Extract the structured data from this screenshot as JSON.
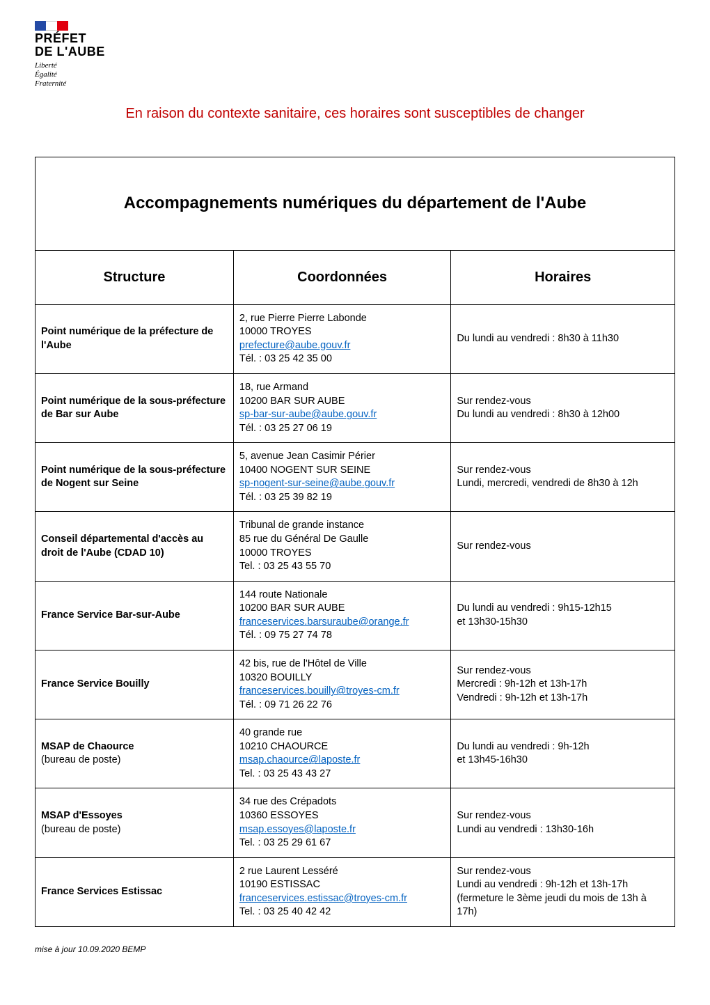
{
  "logo": {
    "line1": "PRÉFET",
    "line2": "DE L'AUBE",
    "motto1": "Liberté",
    "motto2": "Égalité",
    "motto3": "Fraternité"
  },
  "notice": "En raison du contexte sanitaire, ces horaires sont susceptibles de changer",
  "title": "Accompagnements numériques du département de l'Aube",
  "headers": {
    "structure": "Structure",
    "coord": "Coordonnées",
    "horaires": "Horaires"
  },
  "rows": [
    {
      "structure": "Point numérique de la préfecture de l'Aube",
      "addr1": "2, rue Pierre Pierre Labonde",
      "addr2": "10000 TROYES",
      "mail": "prefecture@aube.gouv.fr",
      "tel": "Tél. : 03 25 42 35 00",
      "horaires": "Du lundi au vendredi : 8h30 à 11h30"
    },
    {
      "structure": "Point numérique de la sous-préfecture de Bar sur Aube",
      "addr1": "18, rue Armand",
      "addr2": "10200 BAR SUR AUBE",
      "mail": "sp-bar-sur-aube@aube.gouv.fr",
      "tel": "Tél. : 03 25 27 06 19",
      "horaires": "Sur rendez-vous\nDu lundi au vendredi : 8h30 à 12h00"
    },
    {
      "structure": "Point numérique de la sous-préfecture de Nogent sur Seine",
      "addr1": "5, avenue Jean Casimir Périer",
      "addr2": "10400 NOGENT SUR SEINE",
      "mail": "sp-nogent-sur-seine@aube.gouv.fr",
      "tel": "Tél. : 03 25 39 82 19",
      "horaires": "Sur rendez-vous\nLundi, mercredi, vendredi de 8h30 à 12h"
    },
    {
      "structure": "Conseil départemental d'accès au droit de l'Aube (CDAD 10)",
      "addr1": "Tribunal de grande instance",
      "addr2": "85 rue du Général De Gaulle\n10000 TROYES",
      "mail": "",
      "tel": "Tel. : 03 25 43 55 70",
      "horaires": "Sur rendez-vous"
    },
    {
      "structure": "France Service Bar-sur-Aube",
      "addr1": "144 route Nationale",
      "addr2": "10200 BAR SUR AUBE",
      "mail": "franceservices.barsuraube@orange.fr",
      "tel": "Tél. : 09 75 27 74 78",
      "horaires": "Du lundi au vendredi : 9h15-12h15\net 13h30-15h30"
    },
    {
      "structure": "France Service Bouilly",
      "addr1": "42 bis, rue de l'Hôtel de Ville",
      "addr2": "10320 BOUILLY",
      "mail": "franceservices.bouilly@troyes-cm.fr",
      "tel": "Tél. : 09 71 26 22 76",
      "horaires": "Sur rendez-vous\nMercredi : 9h-12h et 13h-17h\nVendredi : 9h-12h et 13h-17h"
    },
    {
      "structure": "MSAP de Chaource",
      "structure_sub": "(bureau de poste)",
      "addr1": "40 grande rue",
      "addr2": "10210 CHAOURCE",
      "mail": "msap.chaource@laposte.fr",
      "tel": "Tel. : 03 25 43 43 27",
      "horaires": "Du lundi au vendredi : 9h-12h\net 13h45-16h30"
    },
    {
      "structure": "MSAP d'Essoyes",
      "structure_sub": "(bureau de poste)",
      "addr1": "34 rue des Crépadots",
      "addr2": "10360 ESSOYES",
      "mail": "msap.essoyes@laposte.fr",
      "tel": "Tel. : 03 25 29 61 67",
      "horaires": "Sur rendez-vous\nLundi au vendredi : 13h30-16h"
    },
    {
      "structure": "France Services Estissac",
      "addr1": "2 rue Laurent Lesséré",
      "addr2": "10190 ESTISSAC",
      "mail": "franceservices.estissac@troyes-cm.fr",
      "tel": "Tel. : 03 25 40 42 42",
      "horaires": "Sur rendez-vous\nLundi au vendredi : 9h-12h et 13h-17h\n(fermeture le 3ème jeudi du mois de 13h à 17h)"
    }
  ],
  "footer": "mise à jour 10.09.2020 BEMP"
}
